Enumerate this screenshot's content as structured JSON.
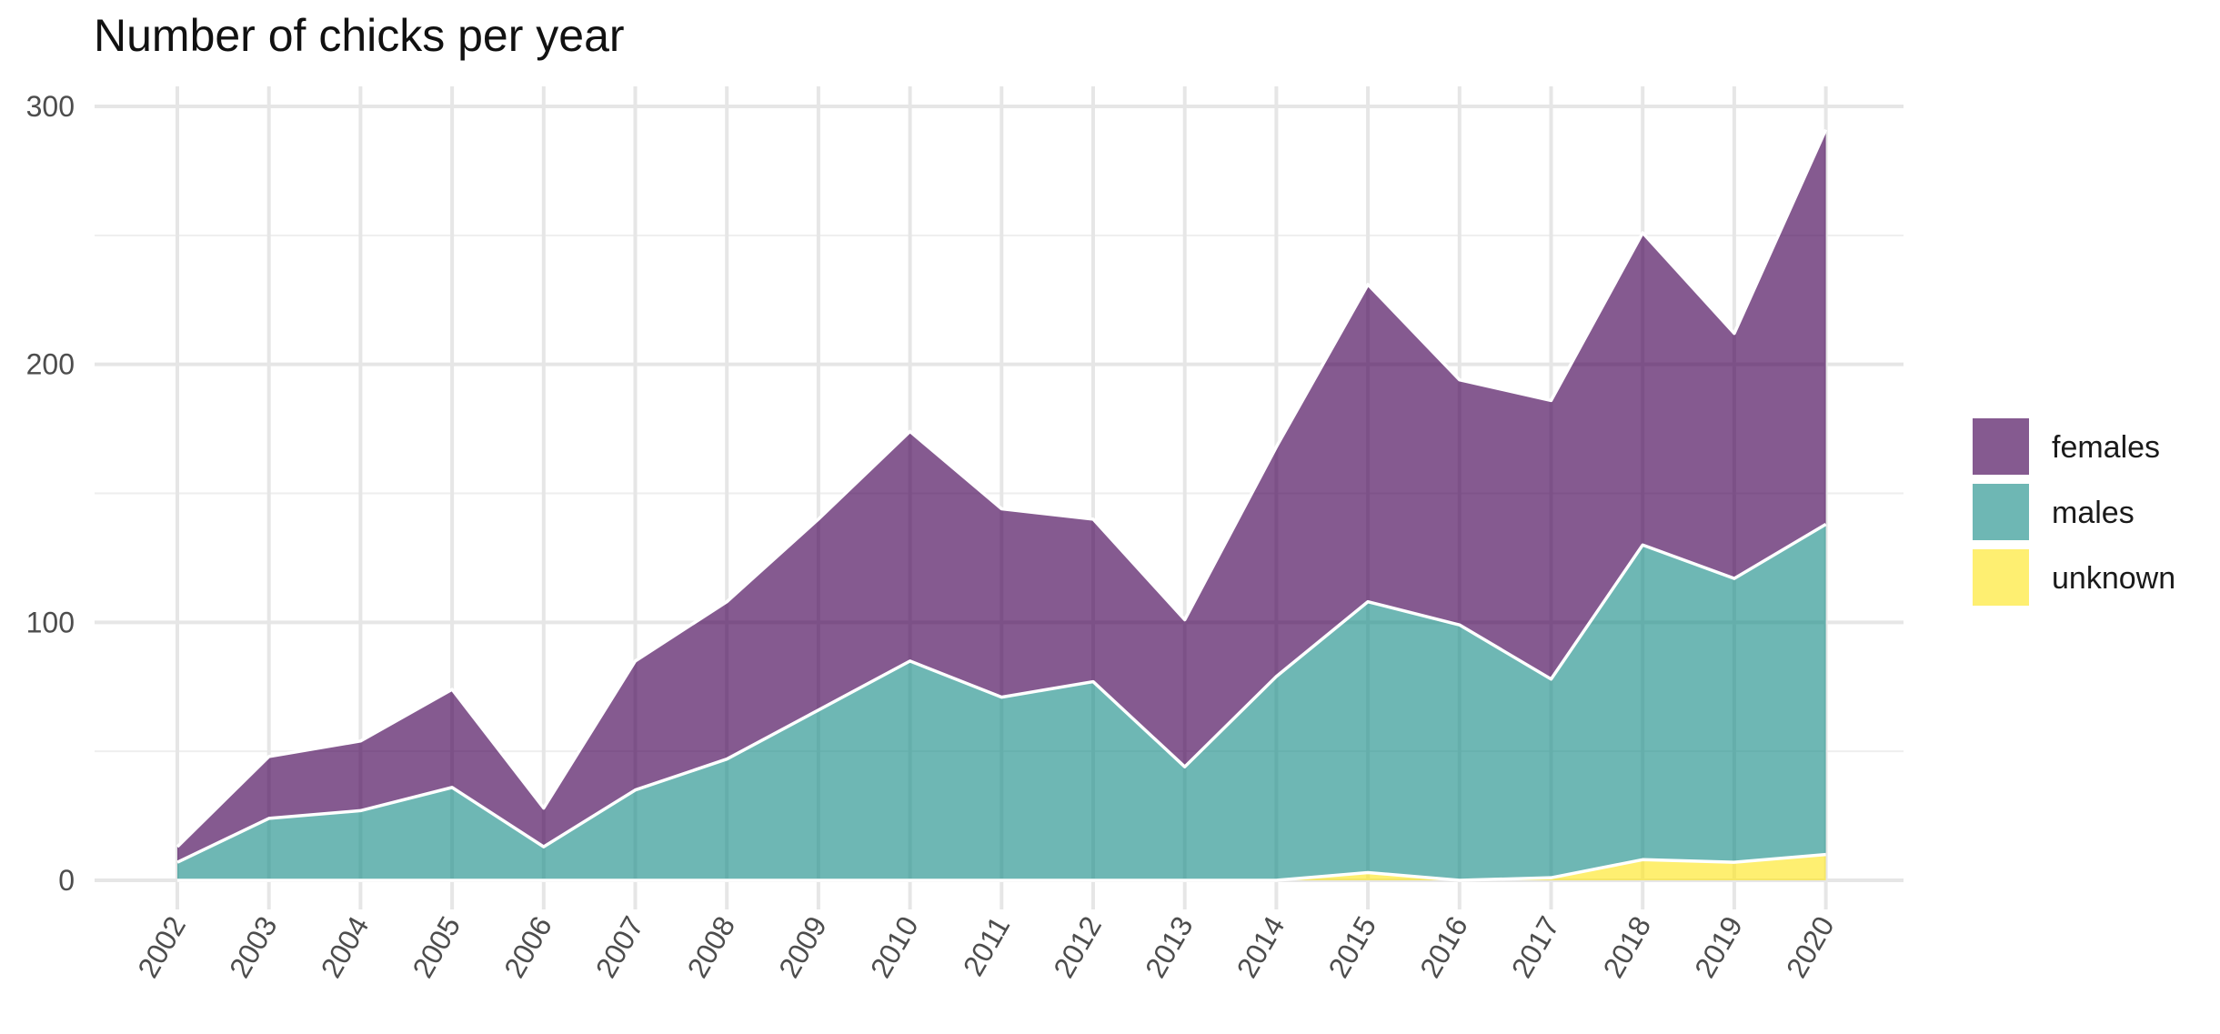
{
  "chart_data": {
    "type": "area",
    "stacked": true,
    "title": "Number of chicks per year",
    "xlabel": "",
    "ylabel": "",
    "x": [
      "2002",
      "2003",
      "2004",
      "2005",
      "2006",
      "2007",
      "2008",
      "2009",
      "2010",
      "2011",
      "2012",
      "2013",
      "2014",
      "2015",
      "2016",
      "2017",
      "2018",
      "2019",
      "2020"
    ],
    "ylim": [
      0,
      300
    ],
    "yticks": [
      0,
      100,
      200,
      300
    ],
    "grid": true,
    "legend_position": "right",
    "series": [
      {
        "name": "unknown",
        "color": "#FDE725",
        "values": [
          0,
          0,
          0,
          0,
          0,
          0,
          0,
          0,
          0,
          0,
          0,
          0,
          0,
          3,
          0,
          1,
          8,
          7,
          10
        ]
      },
      {
        "name": "males",
        "color": "#21908C",
        "values": [
          7,
          24,
          27,
          36,
          13,
          35,
          47,
          66,
          85,
          71,
          77,
          44,
          79,
          105,
          99,
          77,
          122,
          110,
          128
        ]
      },
      {
        "name": "females",
        "color": "#440154",
        "values": [
          6,
          24,
          27,
          38,
          15,
          50,
          61,
          74,
          89,
          73,
          63,
          57,
          89,
          123,
          95,
          108,
          121,
          95,
          153
        ]
      }
    ]
  }
}
